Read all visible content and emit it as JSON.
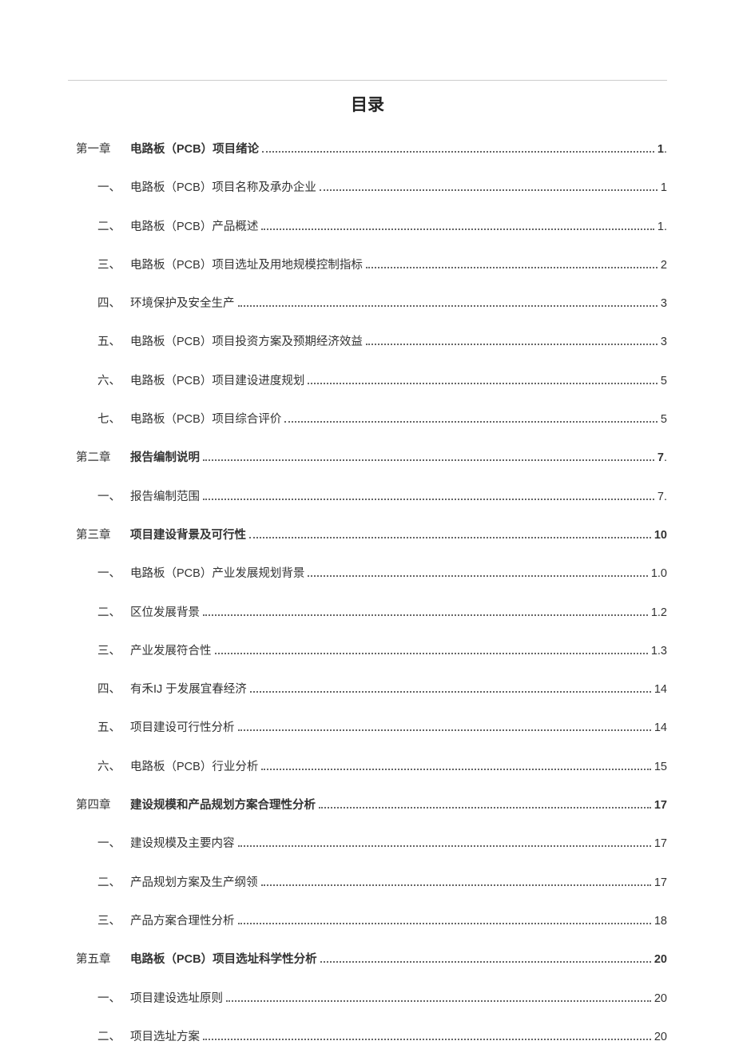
{
  "title": "目录",
  "colors": {
    "background": "#ffffff",
    "text": "#333333",
    "hr": "#cccccc",
    "dots": "#666666"
  },
  "typography": {
    "title_fontsize": 21,
    "body_fontsize": 14.5,
    "row_gap": 28
  },
  "toc": [
    {
      "level": "chapter",
      "label": "第一章",
      "text_pre": "电路板（",
      "text_bold": "PCB",
      "text_post": "）项目绪论",
      "page": "1",
      "page_suffix": "."
    },
    {
      "level": "sub",
      "label": "一、",
      "text": "电路板（PCB）项目名称及承办企业",
      "page": "1"
    },
    {
      "level": "sub",
      "label": "二、",
      "text": "电路板（PCB）产品概述",
      "page": "1",
      "page_suffix": "."
    },
    {
      "level": "sub",
      "label": "三、",
      "text": "电路板（PCB）项目选址及用地规模控制指标",
      "page": "2"
    },
    {
      "level": "sub",
      "label": "四、",
      "text": "环境保护及安全生产",
      "page": "3"
    },
    {
      "level": "sub",
      "label": "五、",
      "text": "电路板（PCB）项目投资方案及预期经济效益",
      "page": "3"
    },
    {
      "level": "sub",
      "label": "六、",
      "text": "电路板（PCB）项目建设进度规划",
      "page": "5"
    },
    {
      "level": "sub",
      "label": "七、",
      "text": "电路板（PCB）项目综合评价",
      "page": "5"
    },
    {
      "level": "chapter",
      "label": "第二章",
      "text": "报告编制说明",
      "page": "7",
      "page_suffix": "."
    },
    {
      "level": "sub",
      "label": "一、",
      "text": "报告编制范围",
      "page": "7",
      "page_suffix": "."
    },
    {
      "level": "chapter",
      "label": "第三章",
      "text": "项目建设背景及可行性",
      "page": "10"
    },
    {
      "level": "sub",
      "label": "一、",
      "text": "电路板（PCB）产业发展规划背景",
      "page": "1.0"
    },
    {
      "level": "sub",
      "label": "二、",
      "text": "区位发展背景",
      "page": "1.2"
    },
    {
      "level": "sub",
      "label": "三、",
      "text": "产业发展符合性",
      "page": "1.3"
    },
    {
      "level": "sub",
      "label": "四、",
      "text": "有禾IJ 于发展宜春经济",
      "page": "14"
    },
    {
      "level": "sub",
      "label": "五、",
      "text": "项目建设可行性分析",
      "page": "14"
    },
    {
      "level": "sub",
      "label": "六、",
      "text": "电路板（PCB）行业分析",
      "page": "15"
    },
    {
      "level": "chapter",
      "label": "第四章",
      "text": "建设规模和产品规划方案合理性分析",
      "page": "17"
    },
    {
      "level": "sub",
      "label": "一、",
      "text": "建设规模及主要内容",
      "page": "17"
    },
    {
      "level": "sub",
      "label": "二、",
      "text": "产品规划方案及生产纲领",
      "page": "17"
    },
    {
      "level": "sub",
      "label": "三、",
      "text": "产品方案合理性分析",
      "page": "18"
    },
    {
      "level": "chapter",
      "label": "第五章",
      "text_pre": "电路板（",
      "text_bold": "PCB",
      "text_post": "）项目选址科学性分析",
      "page": "20"
    },
    {
      "level": "sub",
      "label": "一、",
      "text": "项目建设选址原则",
      "page": "20"
    },
    {
      "level": "sub",
      "label": "二、",
      "text": "项目选址方案",
      "page": "20"
    }
  ]
}
